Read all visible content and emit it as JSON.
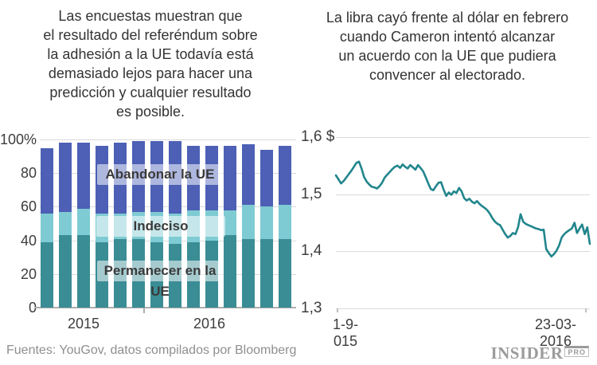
{
  "footer": {
    "source": "Fuentes: YouGov, datos compilados por Bloomberg",
    "brand_name": "INSIDER",
    "brand_suffix": "PRO"
  },
  "chart_data": [
    {
      "type": "bar",
      "stacked": true,
      "title": "Las encuestas muestran que\nel resultado del referéndum sobre\nla adhesión a la UE todavía está\ndemasiado lejos para hacer una\npredicción y cualquier resultado\nes posible.",
      "unit": "%",
      "ylim": [
        0,
        100
      ],
      "y_tick_labels": [
        "100%",
        "80",
        "60",
        "40",
        "20",
        "0"
      ],
      "x_tick_labels": [
        "2015",
        "2016"
      ],
      "grid": true,
      "legend_position": "inside",
      "categories": [
        "p1",
        "p2",
        "p3",
        "p4",
        "p5",
        "p6",
        "p7",
        "p8",
        "p9",
        "p10",
        "p11",
        "p12",
        "p13",
        "p14"
      ],
      "series": [
        {
          "name": "Permanecer en la UE",
          "color": "#3a8d95",
          "values": [
            39,
            43,
            43,
            39,
            41,
            41,
            39,
            38,
            39,
            40,
            43,
            41,
            41,
            41
          ]
        },
        {
          "name": "Indeciso",
          "color": "#7fcbd3",
          "values": [
            17,
            14,
            16,
            17,
            15,
            16,
            18,
            18,
            19,
            18,
            15,
            20,
            19,
            20
          ]
        },
        {
          "name": "Abandonar la UE",
          "color": "#4d60b5",
          "values": [
            39,
            41,
            39,
            40,
            42,
            42,
            42,
            43,
            38,
            38,
            38,
            36,
            34,
            35
          ]
        }
      ]
    },
    {
      "type": "line",
      "title": "La libra cayó frente al dólar en febrero\ncuando Cameron intentó alcanzar\nun acuerdo con la UE que pudiera\nconvencer al electorado.",
      "unit": "$",
      "ylim": [
        1.3,
        1.6
      ],
      "y_tick_labels": [
        "1,6 $",
        "1,5",
        "1,4",
        "1,3"
      ],
      "x_tick_labels": [
        "1-9-015",
        "23-03-2016"
      ],
      "grid": true,
      "color": "#21868c",
      "values": [
        1.533,
        1.526,
        1.519,
        1.523,
        1.529,
        1.535,
        1.541,
        1.548,
        1.555,
        1.557,
        1.545,
        1.53,
        1.522,
        1.517,
        1.513,
        1.512,
        1.51,
        1.514,
        1.52,
        1.529,
        1.534,
        1.539,
        1.544,
        1.548,
        1.55,
        1.546,
        1.552,
        1.548,
        1.545,
        1.551,
        1.547,
        1.543,
        1.551,
        1.546,
        1.54,
        1.53,
        1.519,
        1.509,
        1.507,
        1.514,
        1.52,
        1.521,
        1.508,
        1.497,
        1.503,
        1.499,
        1.505,
        1.502,
        1.511,
        1.505,
        1.493,
        1.489,
        1.492,
        1.487,
        1.484,
        1.488,
        1.483,
        1.479,
        1.476,
        1.472,
        1.466,
        1.458,
        1.452,
        1.448,
        1.446,
        1.438,
        1.43,
        1.424,
        1.427,
        1.432,
        1.43,
        1.442,
        1.465,
        1.452,
        1.448,
        1.446,
        1.444,
        1.442,
        1.44,
        1.439,
        1.437,
        1.438,
        1.404,
        1.397,
        1.391,
        1.395,
        1.401,
        1.41,
        1.424,
        1.43,
        1.434,
        1.437,
        1.44,
        1.45,
        1.432,
        1.44,
        1.447,
        1.43,
        1.442,
        1.413
      ]
    }
  ]
}
